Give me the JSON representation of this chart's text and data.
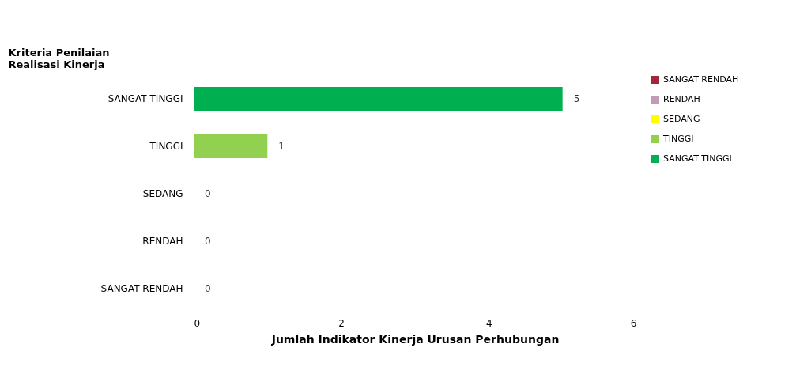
{
  "chart_data": {
    "type": "bar",
    "orientation": "horizontal",
    "ylabel": "Kriteria Penilaian Realisasi Kinerja",
    "xlabel": "Jumlah Indikator Kinerja Urusan Perhubungan",
    "categories": [
      "SANGAT TINGGI",
      "TINGGI",
      "SEDANG",
      "RENDAH",
      "SANGAT RENDAH"
    ],
    "series": [
      {
        "name": "SANGAT RENDAH",
        "color": "#a0283c",
        "values": [
          null,
          null,
          null,
          null,
          0
        ]
      },
      {
        "name": "RENDAH",
        "color": "#c49ab4",
        "values": [
          null,
          null,
          null,
          0,
          null
        ]
      },
      {
        "name": "SEDANG",
        "color": "#ffff00",
        "values": [
          null,
          null,
          0,
          null,
          null
        ]
      },
      {
        "name": "TINGGI",
        "color": "#92d050",
        "values": [
          null,
          1,
          null,
          null,
          null
        ]
      },
      {
        "name": "SANGAT TINGGI",
        "color": "#00b050",
        "values": [
          5,
          null,
          null,
          null,
          null
        ]
      }
    ],
    "xlim": [
      0,
      6
    ],
    "xticks": [
      0,
      2,
      4,
      6
    ],
    "data_labels": true,
    "grid": false,
    "legend": "right"
  }
}
